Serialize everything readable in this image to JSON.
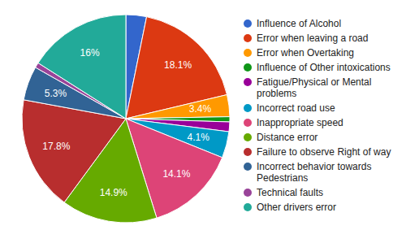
{
  "chart_data": {
    "type": "pie",
    "categories": [
      "Influence of Alcohol",
      "Error when leaving a road",
      "Error when Overtaking",
      "Influence of Other intoxications",
      "Fatigue/Physical or Mental problems",
      "Incorrect road use",
      "Inappropriate speed",
      "Distance error",
      "Failure to observe Right of way",
      "Incorrect behavior towards Pedestrians",
      "Technical faults",
      "Other drivers error"
    ],
    "values": [
      3.2,
      18.1,
      3.4,
      0.8,
      1.5,
      4.1,
      14.1,
      14.9,
      17.8,
      5.3,
      0.8,
      16
    ],
    "value_labels": [
      null,
      "18.1%",
      "3.4%",
      null,
      null,
      "4.1%",
      "14.1%",
      "14.9%",
      "17.8%",
      "5.3%",
      null,
      "16%"
    ],
    "colors": [
      "#3366cc",
      "#dc3912",
      "#ff9900",
      "#109618",
      "#990099",
      "#0099c6",
      "#dd4477",
      "#66aa00",
      "#b82e2e",
      "#316395",
      "#994499",
      "#22aa99"
    ],
    "data_labels": true,
    "legend": "right"
  }
}
